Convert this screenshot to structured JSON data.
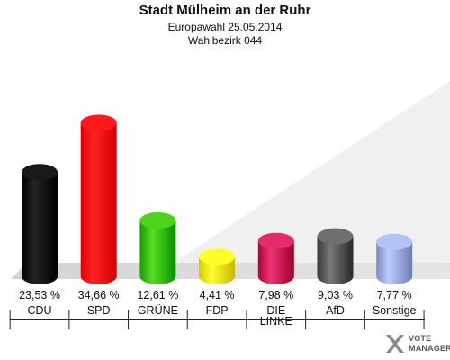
{
  "header": {
    "title": "Stadt Mülheim an der Ruhr",
    "subtitle1": "Europawahl 25.05.2014",
    "subtitle2": "Wahlbezirk 044"
  },
  "chart_data": {
    "type": "bar",
    "title": "Stadt Mülheim an der Ruhr",
    "subtitle": [
      "Europawahl 25.05.2014",
      "Wahlbezirk 044"
    ],
    "categories": [
      "CDU",
      "SPD",
      "GRÜNE",
      "FDP",
      "DIE LINKE",
      "AfD",
      "Sonstige"
    ],
    "value_labels": [
      "23,53 %",
      "34,66 %",
      "12,61 %",
      "4,41 %",
      "7,98 %",
      "9,03 %",
      "7,77 %"
    ],
    "values": [
      23.53,
      34.66,
      12.61,
      4.41,
      7.98,
      9.03,
      7.77
    ],
    "colors": [
      "#000000",
      "#ff0000",
      "#33bb00",
      "#f5e50d",
      "#cc1155",
      "#555555",
      "#99aadd"
    ],
    "unit": "%",
    "grid": false,
    "legend": "none"
  },
  "logo": {
    "line1": "VOTE",
    "line2": "MANAGER"
  }
}
